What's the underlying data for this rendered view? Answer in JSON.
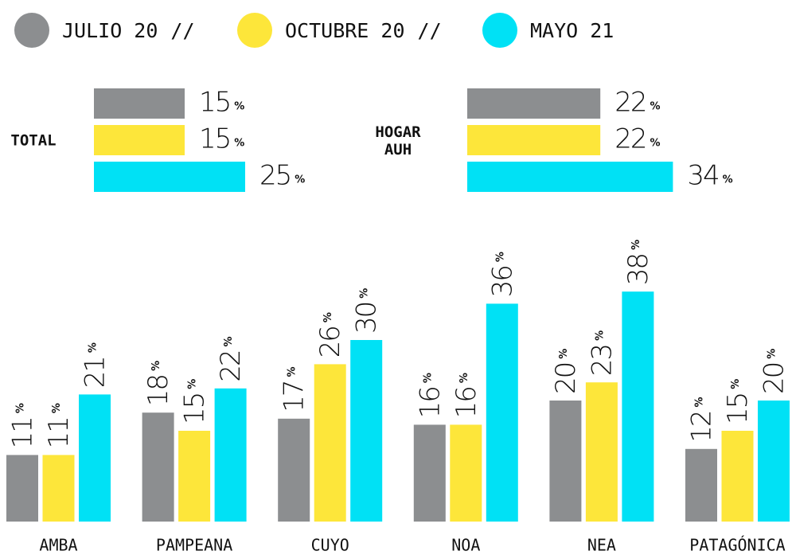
{
  "legend_separator": "//",
  "unit": "%",
  "chart_data": [
    {
      "type": "hbar",
      "categories": [
        "TOTAL",
        "HOGAR AUH"
      ],
      "series": [
        {
          "name": "JULIO 20",
          "color": "#8c8e90",
          "values": [
            15,
            22
          ]
        },
        {
          "name": "OCTUBRE 20",
          "color": "#fde63a",
          "values": [
            15,
            22
          ]
        },
        {
          "name": "MAYO 21",
          "color": "#00e1f5",
          "values": [
            25,
            34
          ]
        }
      ],
      "xlim": [
        0,
        40
      ]
    },
    {
      "type": "bar",
      "categories": [
        "AMBA",
        "PAMPEANA",
        "CUYO",
        "NOA",
        "NEA",
        "PATAGÓNICA"
      ],
      "series": [
        {
          "name": "JULIO 20",
          "color": "#8c8e90",
          "values": [
            11,
            18,
            17,
            16,
            20,
            12
          ]
        },
        {
          "name": "OCTUBRE 20",
          "color": "#fde63a",
          "values": [
            11,
            15,
            26,
            16,
            23,
            15
          ]
        },
        {
          "name": "MAYO 21",
          "color": "#00e1f5",
          "values": [
            21,
            22,
            30,
            36,
            38,
            20
          ]
        }
      ],
      "ylim": [
        0,
        40
      ]
    }
  ]
}
